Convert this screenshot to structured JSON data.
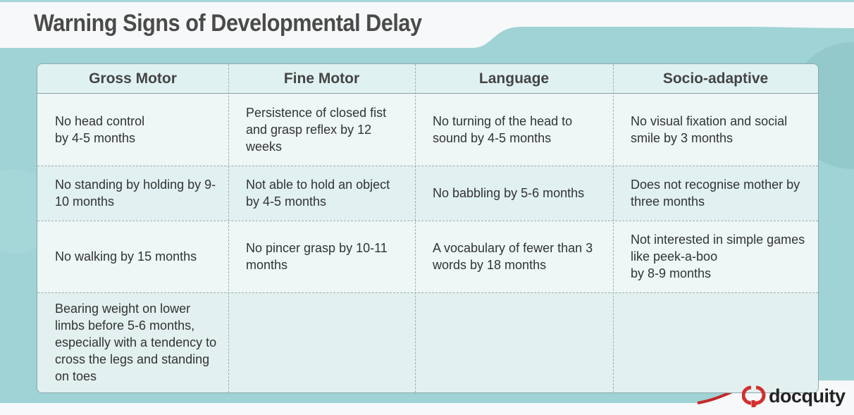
{
  "title": "Warning Signs of Developmental Delay",
  "colors": {
    "teal": "#9fd3d5",
    "header_bg": "#e0f1f1",
    "brand_red": "#d32f2f"
  },
  "table": {
    "headers": [
      "Gross Motor",
      "Fine Motor",
      "Language",
      "Socio-adaptive"
    ],
    "rows": [
      [
        "No head control\nby 4-5 months",
        "Persistence of closed fist and grasp reflex by 12 weeks",
        "No turning of the head to sound by 4-5 months",
        "No visual fixation and social smile by 3 months"
      ],
      [
        "No standing by holding by 9-10 months",
        "Not able to hold an object by 4-5 months",
        "No babbling by 5-6 months",
        "Does not recognise mother by three months"
      ],
      [
        "No walking by 15 months",
        "No pincer grasp by 10-11 months",
        "A vocabulary of fewer than 3 words by 18 months",
        "Not interested in simple games like peek-a-boo\nby 8-9 months"
      ],
      [
        "Bearing weight on lower limbs before 5-6 months, especially with a tendency to cross the legs and standing on toes",
        "",
        "",
        ""
      ]
    ]
  },
  "logo": {
    "text": "docquity",
    "icon": "docquity-logo-icon"
  }
}
